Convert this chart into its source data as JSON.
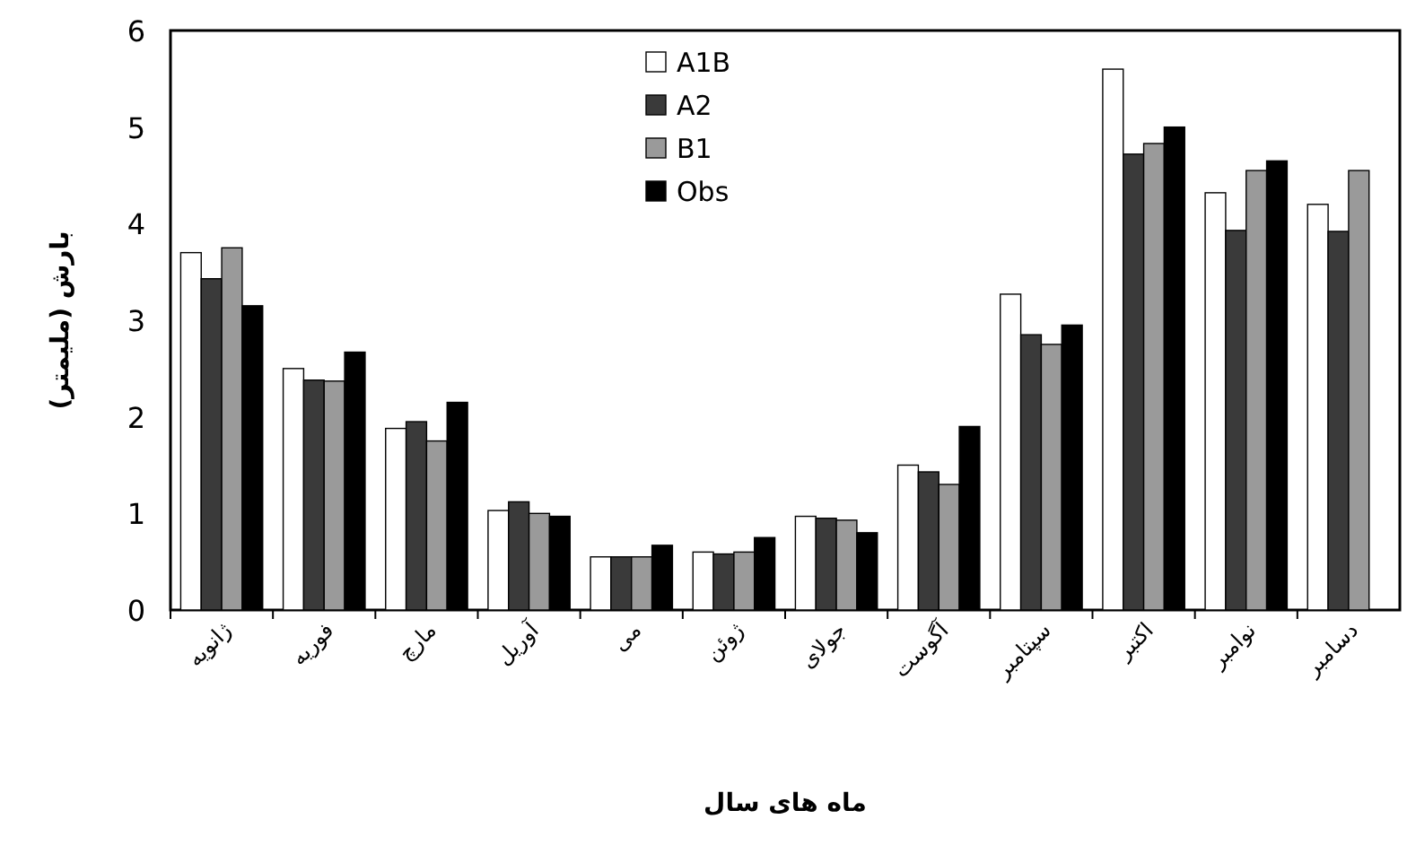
{
  "chart_data": {
    "type": "bar",
    "xlabel": "ماه های سال",
    "ylabel": "بارش (ملیمتر)",
    "categories": [
      "ژانویه",
      "فوریه",
      "مارچ",
      "آوریل",
      "می",
      "ژوئن",
      "جولای",
      "آگوست",
      "سپتامبر",
      "اکتبر",
      "نوامبر",
      "دسامبر"
    ],
    "series": [
      {
        "name": "A1B",
        "color": "#ffffff",
        "values": [
          3.7,
          2.5,
          1.88,
          1.03,
          0.55,
          0.6,
          0.97,
          1.5,
          3.27,
          5.6,
          4.32,
          4.2
        ]
      },
      {
        "name": "A2",
        "color": "#3a3a3a",
        "values": [
          3.43,
          2.38,
          1.95,
          1.12,
          0.55,
          0.58,
          0.95,
          1.43,
          2.85,
          4.72,
          3.93,
          3.92
        ]
      },
      {
        "name": "B1",
        "color": "#9a9a9a",
        "values": [
          3.75,
          2.37,
          1.75,
          1.0,
          0.55,
          0.6,
          0.93,
          1.3,
          2.75,
          4.83,
          4.55,
          4.55
        ]
      },
      {
        "name": "Obs",
        "color": "#000000",
        "values": [
          3.15,
          2.67,
          2.15,
          0.97,
          0.67,
          0.75,
          0.8,
          1.9,
          2.95,
          5.0,
          4.65,
          null
        ]
      }
    ],
    "ylim": [
      0,
      6
    ],
    "yticks": [
      0,
      1,
      2,
      3,
      4,
      5,
      6
    ],
    "legend": "top",
    "grid": false
  }
}
